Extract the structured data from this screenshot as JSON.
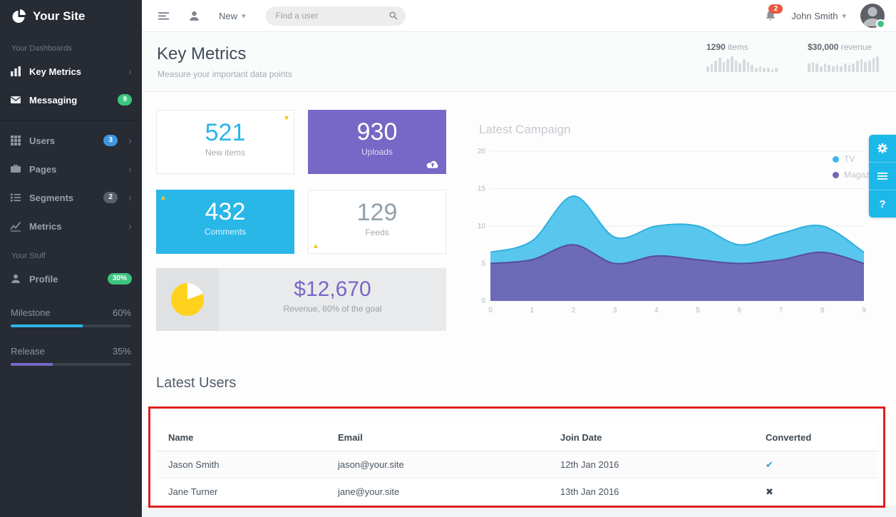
{
  "glyphs": {
    "chevron": "›",
    "caret_down": "▾",
    "caret_up": "▴",
    "question": "?"
  },
  "sidebar": {
    "logo_text": "Your Site",
    "dashboards_label": "Your Dashboards",
    "dashboards": [
      {
        "label": "Key Metrics"
      },
      {
        "label": "Messaging",
        "badge": "9"
      }
    ],
    "nav": [
      {
        "label": "Users",
        "badge": "3"
      },
      {
        "label": "Pages"
      },
      {
        "label": "Segments",
        "badge": "2"
      },
      {
        "label": "Metrics"
      }
    ],
    "stuff_label": "Your Stuff",
    "stuff": [
      {
        "label": "Profile",
        "badge": "30%"
      }
    ],
    "progress": [
      {
        "label": "Milestone",
        "value": "60%"
      },
      {
        "label": "Release",
        "value": "35%"
      }
    ]
  },
  "topbar": {
    "new_label": "New",
    "search_placeholder": "Find a user",
    "notifications": "2",
    "user_name": "John Smith"
  },
  "header": {
    "title": "Key Metrics",
    "subtitle": "Measure your important data points",
    "stats": [
      {
        "value": "1290",
        "label": "items"
      },
      {
        "value": "$30,000",
        "label": "revenue"
      }
    ]
  },
  "tiles": [
    {
      "value": "521",
      "label": "New items"
    },
    {
      "value": "930",
      "label": "Uploads"
    },
    {
      "value": "432",
      "label": "Comments"
    },
    {
      "value": "129",
      "label": "Feeds"
    }
  ],
  "revenue_tile": {
    "value": "$12,670",
    "label": "Revenue, 60% of the goal"
  },
  "campaign": {
    "title": "Latest Campaign",
    "legend": [
      {
        "name": "TV"
      },
      {
        "name": "Magazine"
      }
    ]
  },
  "chart_data": [
    {
      "type": "area",
      "name": "campaign",
      "title": "Latest Campaign",
      "x": [
        0,
        1,
        2,
        3,
        4,
        5,
        6,
        7,
        8,
        9
      ],
      "series": [
        {
          "name": "TV",
          "color": "#4cc2ec",
          "stroke": "#2fb0dd",
          "values": [
            6.5,
            8,
            14,
            8.5,
            10,
            10,
            7.5,
            9,
            10,
            6.5
          ]
        },
        {
          "name": "Magazine",
          "color": "#6f63b4",
          "stroke": "#584c9e",
          "values": [
            5,
            5.5,
            7.5,
            5,
            6,
            5.5,
            5,
            5.5,
            6.5,
            5
          ]
        }
      ],
      "ylim": [
        0,
        20
      ],
      "yticks": [
        0,
        5,
        10,
        15,
        20
      ],
      "grid": true,
      "legend_position": "top-right"
    },
    {
      "type": "bar",
      "name": "items_sparkline",
      "values": [
        4,
        6,
        8,
        10,
        7,
        9,
        11,
        8,
        6,
        9,
        7,
        5,
        3,
        4,
        3,
        3,
        2,
        3
      ]
    },
    {
      "type": "bar",
      "name": "revenue_sparkline",
      "values": [
        6,
        7,
        6,
        4,
        6,
        5,
        4,
        5,
        4,
        6,
        5,
        6,
        8,
        9,
        7,
        8,
        10,
        11
      ]
    }
  ],
  "latest_users": {
    "title": "Latest Users",
    "columns": [
      "Name",
      "Email",
      "Join Date",
      "Converted"
    ],
    "rows": [
      {
        "name": "Jason Smith",
        "email": "jason@your.site",
        "join_date": "12th Jan 2016",
        "converted": "yes",
        "converted_glyph": "✔"
      },
      {
        "name": "Jane Turner",
        "email": "jane@your.site",
        "join_date": "13th Jan 2016",
        "converted": "no",
        "converted_glyph": "✖"
      }
    ]
  }
}
